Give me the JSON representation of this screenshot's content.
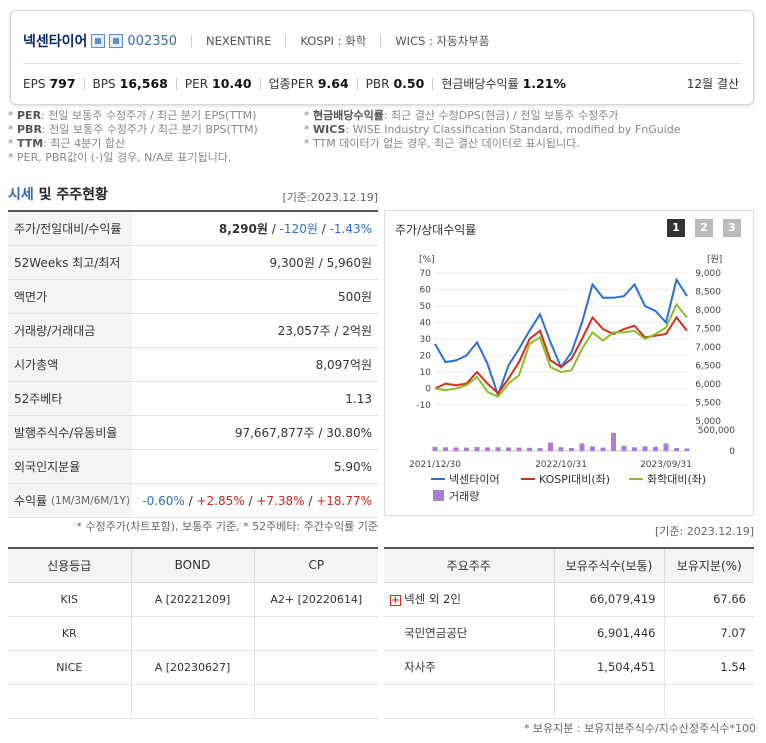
{
  "company": {
    "name": "넥센타이어",
    "code": "002350",
    "english": "NEXENTIRE",
    "market": "KOSPI : 화학",
    "wics": "WICS : 자동차부품"
  },
  "metrics": [
    {
      "label": "EPS",
      "value": "797"
    },
    {
      "label": "BPS",
      "value": "16,568"
    },
    {
      "label": "PER",
      "value": "10.40"
    },
    {
      "label": "업종PER",
      "value": "9.64"
    },
    {
      "label": "PBR",
      "value": "0.50"
    },
    {
      "label": "현금배당수익률",
      "value": "1.21%"
    }
  ],
  "settlement": "12월 결산",
  "notes_left": [
    {
      "key": "PER",
      "text": ": 전일 보통주 수정주가 / 최근 분기 EPS(TTM)"
    },
    {
      "key": "PBR",
      "text": ": 전일 보통주 수정주가 / 최근 분기 BPS(TTM)"
    },
    {
      "key": "TTM",
      "text": ": 최근 4분기 합산"
    },
    {
      "key": "",
      "text": "PER, PBR값이 (-)일 경우, N/A로 표기됩니다."
    }
  ],
  "notes_right": [
    {
      "key": "현금배당수익률",
      "text": ": 최근 결산 수정DPS(현금) / 전일 보통주 수정주가"
    },
    {
      "key": "WICS",
      "text": ": WISE Industry Classification Standard, modified by FnGuide"
    },
    {
      "key": "",
      "text": "TTM 데이터가 없는 경우, 최근 결산 데이터로 표시됩니다."
    }
  ],
  "section": {
    "title_a": "시세",
    "title_b": " 및 주주현황",
    "date": "[기준:2023.12.19]"
  },
  "price_table": [
    {
      "label": "주가/전일대비/수익률"
    },
    {
      "label": "52Weeks 최고/최저",
      "value": "9,300원 / 5,960원"
    },
    {
      "label": "액면가",
      "value": "500원"
    },
    {
      "label": "거래량/거래대금",
      "value": "23,057주 / 2억원"
    },
    {
      "label": "시가총액",
      "value": "8,097억원"
    },
    {
      "label": "52주베타",
      "value": "1.13"
    },
    {
      "label": "발행주식수/유동비율",
      "value": "97,667,877주 / 30.80%"
    },
    {
      "label": "외국인지분율",
      "value": "5.90%"
    },
    {
      "label": "수익률",
      "sub": "(1M/3M/6M/1Y)"
    }
  ],
  "price": {
    "current": "8,290원",
    "change": "-120원",
    "rate": "-1.43%"
  },
  "returns": {
    "m1": "-0.60%",
    "m3": "+2.85%",
    "m6": "+7.38%",
    "y1": "+18.77%"
  },
  "price_note": "* 수정주가(차트포함), 보통주 기준, * 52주베타: 주간수익률 기준",
  "chart": {
    "title": "주가/상대수익률",
    "buttons": [
      "1",
      "2",
      "3"
    ],
    "unit_left": "[%]",
    "unit_right": "[원]",
    "legend": [
      "넥센타이어",
      "KOSPI대비(좌)",
      "화학대비(좌)",
      "거래량"
    ],
    "colors": {
      "company": "#2a6fd6",
      "kospi": "#d62d20",
      "chem": "#8cbf26",
      "volume": "#a97fd6"
    }
  },
  "chart_data": {
    "type": "line",
    "x_tick_labels": [
      "2021/12/30",
      "2022/10/31",
      "2023/09/31"
    ],
    "left_axis": {
      "ticks": [
        70,
        60,
        50,
        40,
        30,
        20,
        10,
        0,
        -10
      ],
      "range": [
        -10,
        70
      ]
    },
    "right_axis": {
      "price_ticks": [
        "9,000",
        "8,500",
        "8,000",
        "7,500",
        "7,000",
        "6,500",
        "6,000",
        "5,500",
        "5,000"
      ],
      "price_range": [
        5000,
        9000
      ],
      "volume_ticks": [
        "500,000",
        "0"
      ],
      "volume_range": [
        0,
        500000
      ]
    },
    "series": [
      {
        "name": "넥센타이어",
        "values": [
          27,
          16,
          17,
          20,
          28,
          15,
          -4,
          14,
          24,
          35,
          45,
          28,
          13,
          22,
          40,
          63,
          55,
          55,
          56,
          63,
          50,
          47,
          40,
          66,
          56
        ]
      },
      {
        "name": "KOSPI대비(좌)",
        "values": [
          0,
          3,
          2,
          3,
          10,
          3,
          -3,
          6,
          16,
          30,
          35,
          17,
          13,
          18,
          30,
          43,
          36,
          33,
          36,
          38,
          31,
          32,
          33,
          43,
          35
        ]
      },
      {
        "name": "화학대비(좌)",
        "values": [
          0,
          -1,
          0,
          2,
          7,
          -2,
          -5,
          3,
          8,
          27,
          31,
          13,
          10,
          11,
          24,
          34,
          29,
          34,
          34,
          35,
          30,
          33,
          37,
          51,
          43
        ]
      },
      {
        "name": "거래량",
        "values": [
          100000,
          90000,
          85000,
          80000,
          95000,
          85000,
          90000,
          85000,
          80000,
          75000,
          70000,
          200000,
          90000,
          70000,
          180000,
          110000,
          80000,
          430000,
          120000,
          90000,
          110000,
          100000,
          180000,
          70000,
          60000
        ]
      }
    ]
  },
  "credit": {
    "headers": [
      "신용등급",
      "BOND",
      "CP"
    ],
    "rows": [
      [
        "KIS",
        "A  [20221209]",
        "A2+  [20220614]"
      ],
      [
        "KR",
        "",
        ""
      ],
      [
        "NICE",
        "A  [20230627]",
        ""
      ],
      [
        "",
        "",
        ""
      ]
    ]
  },
  "holders": {
    "date": "[기준: 2023.12.19]",
    "headers": [
      "주요주주",
      "보유주식수(보통)",
      "보유지분(%)"
    ],
    "rows": [
      [
        "넥센 외 2인",
        "66,079,419",
        "67.66"
      ],
      [
        "국민연금공단",
        "6,901,446",
        "7.07"
      ],
      [
        "자사주",
        "1,504,451",
        "1.54"
      ],
      [
        "",
        "",
        ""
      ]
    ],
    "note": "* 보유지분 : 보유지분주식수/지수산정주식수*100"
  }
}
